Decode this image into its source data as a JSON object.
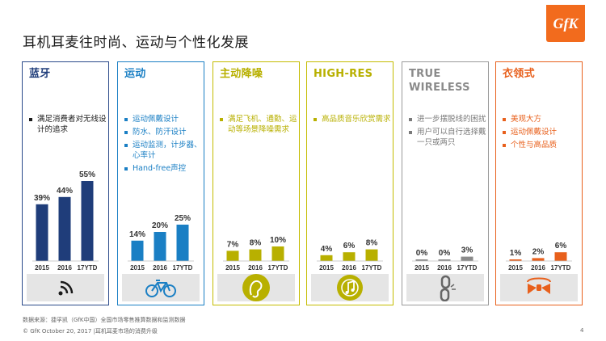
{
  "title": "耳机耳麦往时尚、运动与个性化发展",
  "logo_text": "GfK",
  "panels": [
    {
      "title_lines": [
        "蓝牙",
        ""
      ],
      "color": "#1f3d7a",
      "border": "#2b4a8a",
      "bar_color": "#1f3d7a",
      "bullets": [
        "满足消费者对无线设计的追求"
      ],
      "icon": "wireless-signal-icon",
      "chart_data": {
        "type": "bar",
        "categories": [
          "2015",
          "2016",
          "17YTD"
        ],
        "values": [
          39,
          44,
          55
        ],
        "labels": [
          "39%",
          "44%",
          "55%"
        ]
      }
    },
    {
      "title_lines": [
        "运动",
        ""
      ],
      "color": "#1a7fc4",
      "border": "#1a7fc4",
      "bar_color": "#1a7fc4",
      "bullets": [
        "运动佩戴设计",
        "防水、防汗设计",
        "运动监测，计步器、心率计",
        "Hand-free声控"
      ],
      "icon": "bicycle-icon",
      "chart_data": {
        "type": "bar",
        "categories": [
          "2015",
          "2016",
          "17YTD"
        ],
        "values": [
          14,
          20,
          25
        ],
        "labels": [
          "14%",
          "20%",
          "25%"
        ]
      }
    },
    {
      "title_lines": [
        "主动降噪",
        ""
      ],
      "color": "#b8b000",
      "border": "#c4bc00",
      "bar_color": "#b8b000",
      "bullets": [
        "满足飞机、通勤、运动等场景降噪需求"
      ],
      "icon": "ear-icon",
      "chart_data": {
        "type": "bar",
        "categories": [
          "2015",
          "2016",
          "17YTD"
        ],
        "values": [
          7,
          8,
          10
        ],
        "labels": [
          "7%",
          "8%",
          "10%"
        ]
      }
    },
    {
      "title_lines": [
        "HIGH-RES",
        ""
      ],
      "color": "#b8b000",
      "border": "#c4bc00",
      "bar_color": "#b8b000",
      "bullets": [
        "高品质音乐欣赏需求"
      ],
      "icon": "music-disc-icon",
      "chart_data": {
        "type": "bar",
        "categories": [
          "2015",
          "2016",
          "17YTD"
        ],
        "values": [
          4,
          6,
          8
        ],
        "labels": [
          "4%",
          "6%",
          "8%"
        ]
      }
    },
    {
      "title_lines": [
        "TRUE",
        "WIRELESS"
      ],
      "color": "#8a8a8a",
      "border": "#9a9a9a",
      "bar_color": "#8a8a8a",
      "bullets": [
        "进一步摆脱线的困扰",
        "用户可以自行选择戴一只或两只"
      ],
      "icon": "broken-chain-icon",
      "chart_data": {
        "type": "bar",
        "categories": [
          "2015",
          "2016",
          "17YTD"
        ],
        "values": [
          0,
          0,
          3
        ],
        "labels": [
          "0%",
          "0%",
          "3%"
        ]
      }
    },
    {
      "title_lines": [
        "衣领式",
        ""
      ],
      "color": "#e8601c",
      "border": "#e8601c",
      "bar_color": "#e8601c",
      "bullets": [
        "美观大方",
        "运动佩戴设计",
        "个性与高品质"
      ],
      "icon": "bow-tie-icon",
      "chart_data": {
        "type": "bar",
        "categories": [
          "2015",
          "2016",
          "17YTD"
        ],
        "values": [
          1,
          2,
          6
        ],
        "labels": [
          "1%",
          "2%",
          "6%"
        ]
      }
    }
  ],
  "footer": {
    "source": "数据来源：捷孚凯（GfK中国）全国市场零售推算数据和监测数据",
    "copyright": "© GfK October 20, 2017 |耳机耳麦市场的消费升级",
    "page": "4"
  }
}
